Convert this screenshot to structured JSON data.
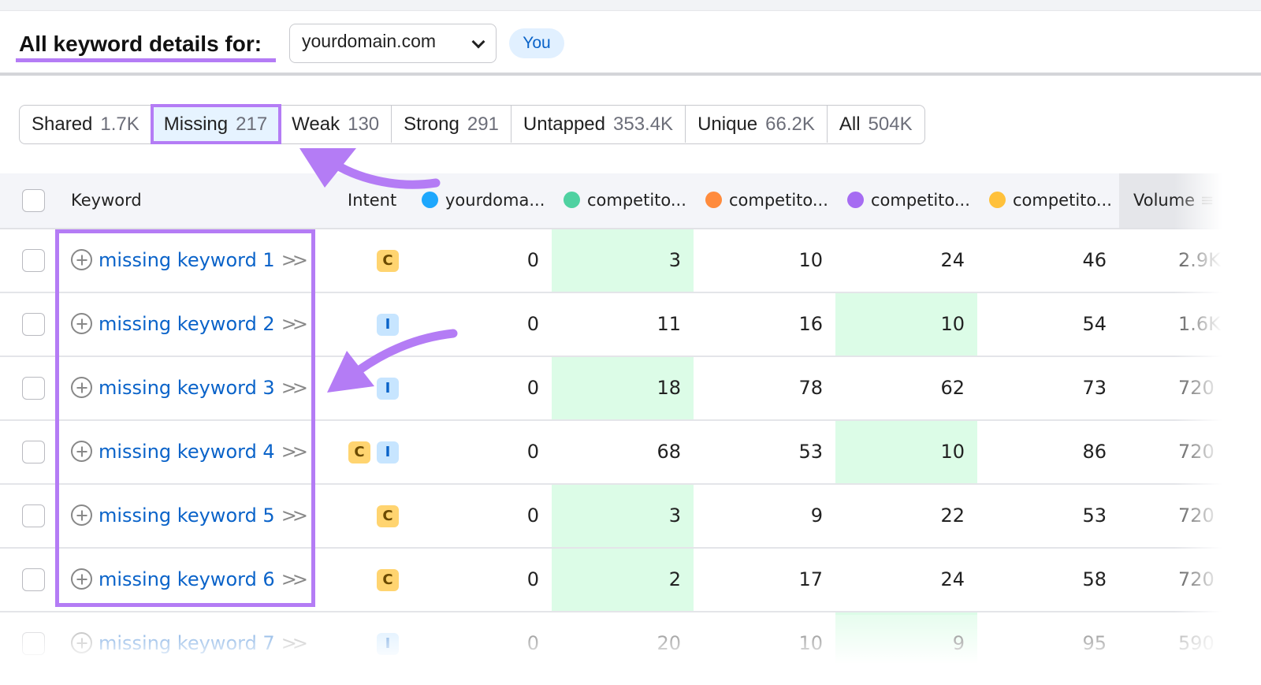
{
  "header": {
    "title": "All keyword details for:",
    "domain": "yourdomain.com",
    "you_badge": "You"
  },
  "tabs": [
    {
      "label": "Shared",
      "count": "1.7K"
    },
    {
      "label": "Missing",
      "count": "217",
      "active": true
    },
    {
      "label": "Weak",
      "count": "130"
    },
    {
      "label": "Strong",
      "count": "291"
    },
    {
      "label": "Untapped",
      "count": "353.4K"
    },
    {
      "label": "Unique",
      "count": "66.2K"
    },
    {
      "label": "All",
      "count": "504K"
    }
  ],
  "columns": {
    "keyword": "Keyword",
    "intent": "Intent",
    "volume": "Volume",
    "domains": [
      {
        "label": "yourdoma...",
        "color": "#1ea7fd"
      },
      {
        "label": "competito...",
        "color": "#4fd1a1"
      },
      {
        "label": "competito...",
        "color": "#ff8b3d"
      },
      {
        "label": "competito...",
        "color": "#a66cf2"
      },
      {
        "label": "competito...",
        "color": "#ffc13b"
      }
    ]
  },
  "highlight_color": "#dcfce7",
  "annotation_color": "#b47cf5",
  "rows": [
    {
      "keyword": "missing keyword 1",
      "intent": [
        "C"
      ],
      "positions": [
        "0",
        "3",
        "10",
        "24",
        "46"
      ],
      "best": 1,
      "volume": "2.9K"
    },
    {
      "keyword": "missing keyword 2",
      "intent": [
        "I"
      ],
      "positions": [
        "0",
        "11",
        "16",
        "10",
        "54"
      ],
      "best": 3,
      "volume": "1.6K"
    },
    {
      "keyword": "missing keyword 3",
      "intent": [
        "I"
      ],
      "positions": [
        "0",
        "18",
        "78",
        "62",
        "73"
      ],
      "best": 1,
      "volume": "720"
    },
    {
      "keyword": "missing keyword 4",
      "intent": [
        "C",
        "I"
      ],
      "positions": [
        "0",
        "68",
        "53",
        "10",
        "86"
      ],
      "best": 3,
      "volume": "720"
    },
    {
      "keyword": "missing keyword 5",
      "intent": [
        "C"
      ],
      "positions": [
        "0",
        "3",
        "9",
        "22",
        "53"
      ],
      "best": 1,
      "volume": "720"
    },
    {
      "keyword": "missing keyword 6",
      "intent": [
        "C"
      ],
      "positions": [
        "0",
        "2",
        "17",
        "24",
        "58"
      ],
      "best": 1,
      "volume": "720"
    },
    {
      "keyword": "missing keyword 7",
      "intent": [
        "I"
      ],
      "positions": [
        "0",
        "20",
        "10",
        "9",
        "95"
      ],
      "best": 3,
      "volume": "590"
    }
  ]
}
